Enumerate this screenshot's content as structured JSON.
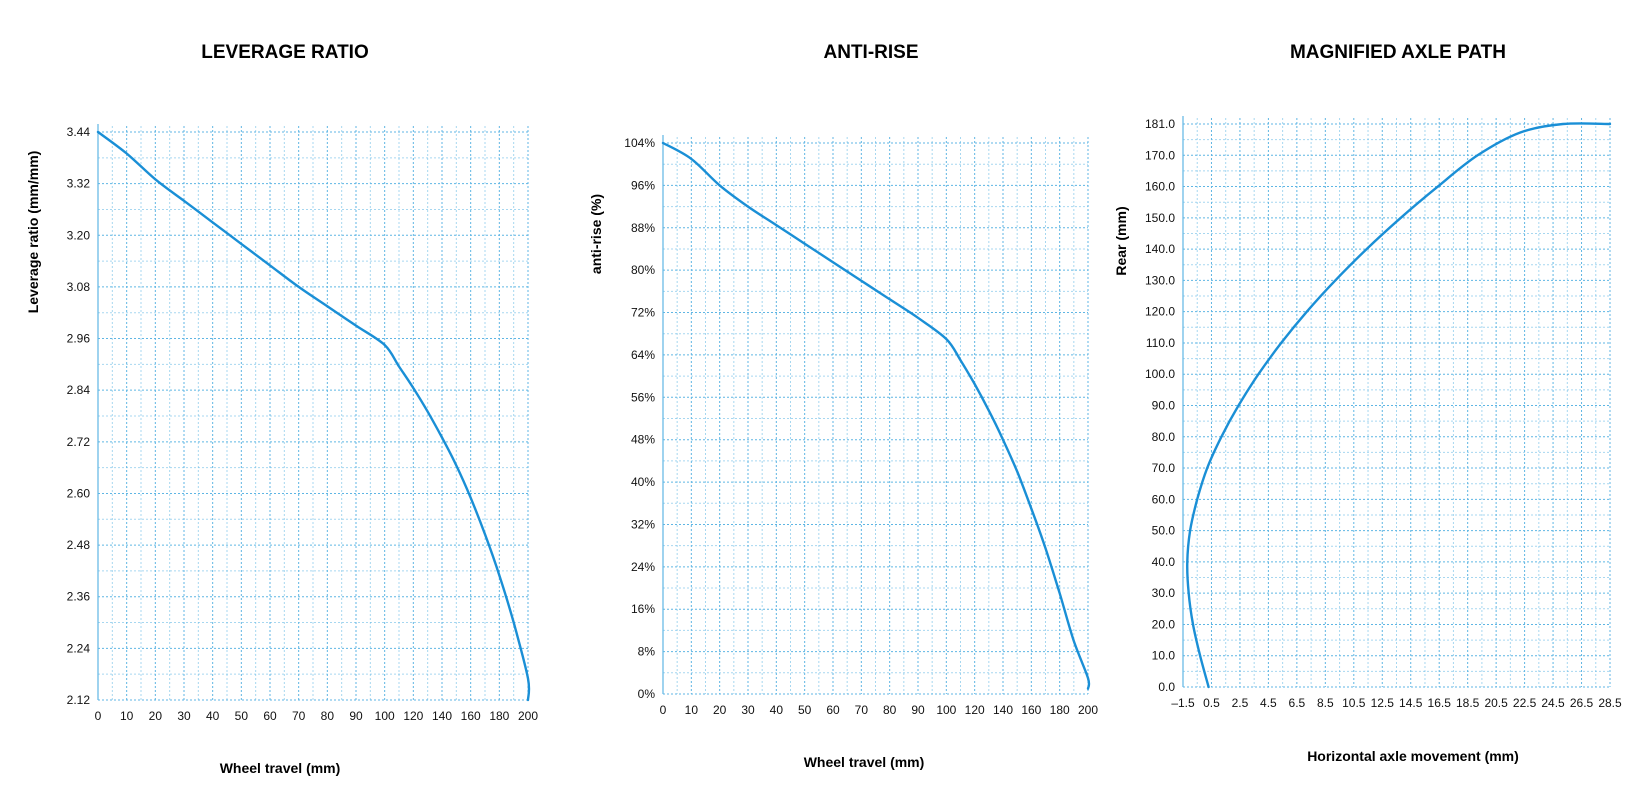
{
  "colors": {
    "curve": "#1a8fd6",
    "grid": "#5fb6e4"
  },
  "chart_data": [
    {
      "type": "line",
      "title": "LEVERAGE RATIO",
      "xlabel": "Wheel travel (mm)",
      "ylabel": "Leverage ratio (mm/mm)",
      "xlim": [
        0,
        210
      ],
      "ylim": [
        2.12,
        3.44
      ],
      "xticks": [
        0,
        10,
        20,
        30,
        40,
        50,
        60,
        70,
        80,
        90,
        100,
        120,
        140,
        160,
        180,
        200
      ],
      "xtick_labels": [
        "0",
        "10",
        "20",
        "30",
        "40",
        "50",
        "60",
        "70",
        "80",
        "90",
        "100",
        "120",
        "140",
        "160",
        "180",
        "200"
      ],
      "yticks": [
        2.12,
        2.24,
        2.36,
        2.48,
        2.6,
        2.72,
        2.84,
        2.96,
        3.08,
        3.2,
        3.32,
        3.44
      ],
      "ytick_labels": [
        "2.12",
        "2.24",
        "2.36",
        "2.48",
        "2.60",
        "2.72",
        "2.84",
        "2.96",
        "3.08",
        "3.20",
        "3.32",
        "3.44"
      ],
      "grid": true,
      "series": [
        {
          "x": [
            0,
            10,
            20,
            30,
            40,
            50,
            60,
            70,
            80,
            90,
            100,
            110,
            120,
            130,
            140,
            150,
            160,
            170,
            180,
            190,
            200,
            210
          ],
          "y": [
            3.46,
            3.39,
            3.33,
            3.28,
            3.23,
            3.18,
            3.13,
            3.08,
            3.035,
            2.99,
            2.945,
            2.895,
            2.845,
            2.79,
            2.73,
            2.665,
            2.59,
            2.505,
            2.41,
            2.3,
            2.17,
            2.12
          ]
        }
      ]
    },
    {
      "type": "line",
      "title": "ANTI-RISE",
      "xlabel": "Wheel travel (mm)",
      "ylabel": "anti-rise (%)",
      "xlim": [
        0,
        210
      ],
      "ylim": [
        0,
        104
      ],
      "xticks": [
        0,
        10,
        20,
        30,
        40,
        50,
        60,
        70,
        80,
        90,
        100,
        120,
        140,
        160,
        180,
        200
      ],
      "xtick_labels": [
        "0",
        "10",
        "20",
        "30",
        "40",
        "50",
        "60",
        "70",
        "80",
        "90",
        "100",
        "120",
        "140",
        "160",
        "180",
        "200"
      ],
      "yticks": [
        0,
        8,
        16,
        24,
        32,
        40,
        48,
        56,
        64,
        72,
        80,
        88,
        96,
        104
      ],
      "ytick_labels": [
        "0%",
        "8%",
        "16%",
        "24%",
        "32%",
        "40%",
        "48%",
        "56%",
        "64%",
        "72%",
        "80%",
        "88%",
        "96%",
        "104%"
      ],
      "grid": true,
      "series": [
        {
          "x": [
            0,
            10,
            20,
            30,
            40,
            50,
            60,
            70,
            80,
            90,
            100,
            110,
            120,
            130,
            140,
            150,
            160,
            170,
            180,
            190,
            200,
            208
          ],
          "y": [
            107,
            101,
            96,
            92,
            88.5,
            85,
            81.5,
            78,
            74.5,
            71,
            67,
            63,
            58.5,
            53.5,
            48,
            42,
            35,
            27.5,
            19,
            10,
            3,
            1
          ]
        }
      ]
    },
    {
      "type": "line",
      "title": "MAGNIFIED AXLE PATH",
      "xlabel": "Horizontal axle movement (mm)",
      "ylabel": "Rear (mm)",
      "xlim": [
        -1.5,
        28.5
      ],
      "ylim": [
        0,
        181
      ],
      "xticks": [
        -1.5,
        0.5,
        2.5,
        4.5,
        6.5,
        8.5,
        10.5,
        12.5,
        14.5,
        16.5,
        18.5,
        20.5,
        22.5,
        24.5,
        26.5,
        28.5
      ],
      "xtick_labels": [
        "–1.5",
        "0.5",
        "2.5",
        "4.5",
        "6.5",
        "8.5",
        "10.5",
        "12.5",
        "14.5",
        "16.5",
        "18.5",
        "20.5",
        "22.5",
        "24.5",
        "26.5",
        "28.5"
      ],
      "yticks": [
        0,
        10,
        20,
        30,
        40,
        50,
        60,
        70,
        80,
        90,
        100,
        110,
        120,
        130,
        140,
        150,
        160,
        170,
        181
      ],
      "ytick_labels": [
        "0.0",
        "10.0",
        "20.0",
        "30.0",
        "40.0",
        "50.0",
        "60.0",
        "70.0",
        "80.0",
        "90.0",
        "100.0",
        "110.0",
        "120.0",
        "130.0",
        "140.0",
        "150.0",
        "160.0",
        "170.0",
        "181.0"
      ],
      "grid": true,
      "series": [
        {
          "x": [
            0.3,
            -0.3,
            -0.8,
            -1.1,
            -1.2,
            -1.0,
            -0.5,
            0.2,
            1.2,
            2.4,
            3.8,
            5.4,
            7.2,
            9.2,
            11.4,
            13.8,
            16.4,
            19.2,
            22.2,
            25.2,
            28.5
          ],
          "y": [
            0,
            10,
            20,
            30,
            40,
            50,
            60,
            70,
            80,
            90,
            100,
            110,
            120,
            130,
            140,
            150,
            160,
            170,
            178,
            183,
            188
          ]
        }
      ]
    }
  ]
}
